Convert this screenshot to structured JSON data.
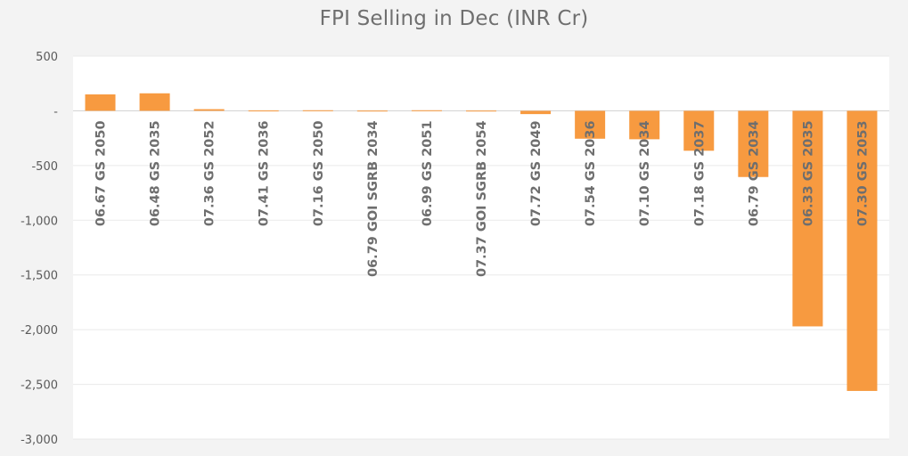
{
  "chart_data": {
    "type": "bar",
    "title": "FPI Selling in Dec (INR Cr)",
    "xlabel": "",
    "ylabel": "",
    "ylim": [
      -3000,
      500
    ],
    "yticks": [
      500,
      0,
      -500,
      -1000,
      -1500,
      -2000,
      -2500,
      -3000
    ],
    "ytick_labels": [
      "500",
      "-",
      "-500",
      "-1,000",
      "-1,500",
      "-2,000",
      "-2,500",
      "-3,000"
    ],
    "grid": true,
    "legend": "none",
    "bar_color": "#f79a40",
    "categories": [
      "06.67 GS 2050",
      "06.48 GS 2035",
      "07.36 GS 2052",
      "07.41 GS 2036",
      "07.16 GS 2050",
      "06.79 GOI SGRB 2034",
      "06.99 GS 2051",
      "07.37 GOI SGRB 2054",
      "07.72 GS 2049",
      "07.54 GS 2036",
      "07.10 GS 2034",
      "07.18 GS 2037",
      "06.79 GS 2034",
      "06.33 GS 2035",
      "07.30 GS 2053"
    ],
    "values": [
      150,
      160,
      15,
      3,
      5,
      2,
      5,
      2,
      -30,
      -255,
      -260,
      -365,
      -605,
      -1970,
      -2560
    ]
  }
}
